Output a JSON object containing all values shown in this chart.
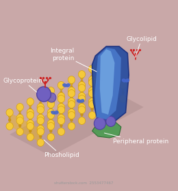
{
  "bg_color": "#c9a8a8",
  "membrane_head_color": "#f5c93a",
  "membrane_head_edge": "#d4a010",
  "membrane_tail_color": "#e0aa10",
  "membrane_tail_dark": "#c89000",
  "integral_protein_dark": "#2a4fa0",
  "integral_protein_mid": "#4a7acc",
  "integral_protein_light": "#7ab0e8",
  "peripheral_protein_color": "#4a9a50",
  "glycoprotein_ball_color": "#7060c0",
  "glycoprotein_ball_edge": "#5040a0",
  "red_branch_color": "#cc2222",
  "blue_molecule_color": "#4466cc",
  "shadow_color": "#a08080",
  "label_color": "#f5f5f5",
  "line_color": "#f0f0f0",
  "labels": {
    "glycolipid": "Glycolipid",
    "integral_protein": "Integral\nprotein",
    "glycoprotein": "Glycoprotein",
    "peripheral_protein": "Peripheral protein",
    "phospholipid": "Phosholipid"
  },
  "label_fontsize": 6.5
}
